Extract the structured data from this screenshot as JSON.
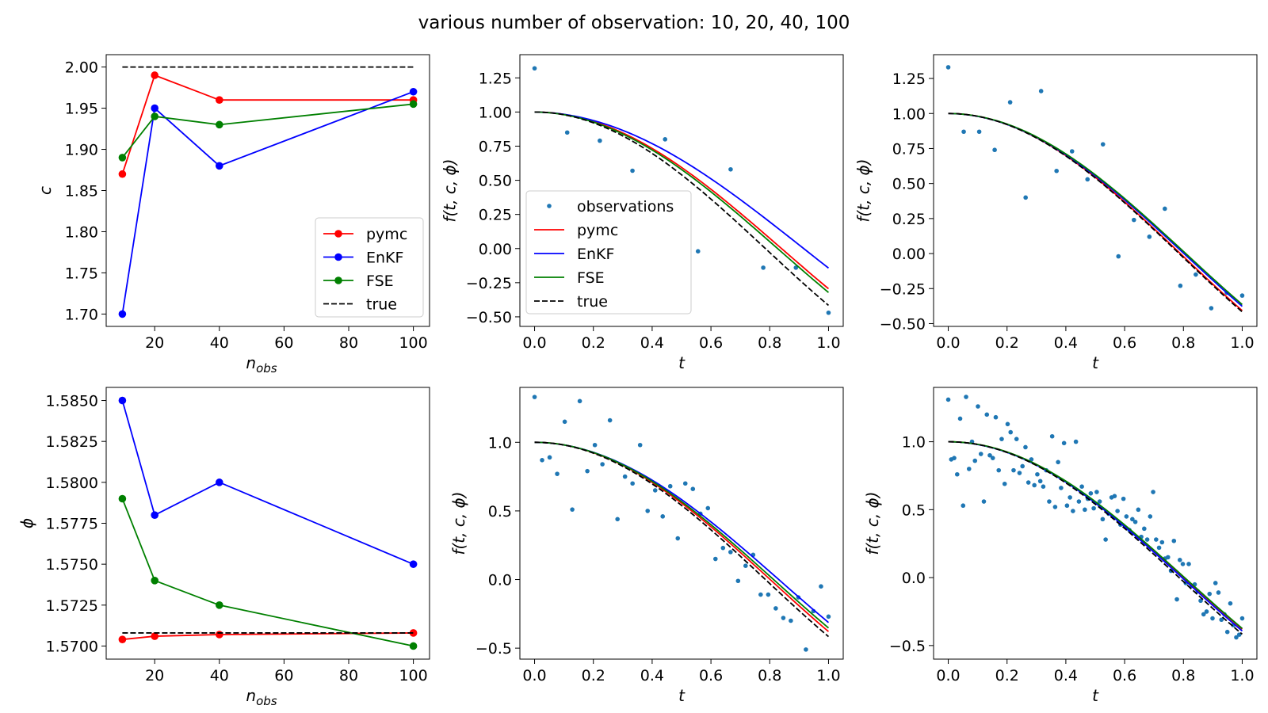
{
  "suptitle": "various number of observation: 10, 20, 40, 100",
  "colors": {
    "pymc": "#ff0000",
    "enkf": "#0000ff",
    "fse": "#008000",
    "true": "#000000",
    "observations": "#1f77b4"
  },
  "chart_data": [
    {
      "id": "c-vs-nobs",
      "type": "line",
      "xlabel": "n_obs",
      "ylabel": "c",
      "xlim": [
        5,
        105
      ],
      "ylim": [
        1.685,
        2.015
      ],
      "xticks": [
        20,
        40,
        60,
        80,
        100
      ],
      "yticks": [
        1.7,
        1.75,
        1.8,
        1.85,
        1.9,
        1.95,
        2.0
      ],
      "ytick_decimals": 2,
      "grid": false,
      "legend": "lower-right",
      "x": [
        10,
        20,
        40,
        100
      ],
      "series": [
        {
          "name": "pymc",
          "color_key": "pymc",
          "values": [
            1.87,
            1.99,
            1.96,
            1.96
          ],
          "markers": true
        },
        {
          "name": "EnKF",
          "color_key": "enkf",
          "values": [
            1.7,
            1.95,
            1.88,
            1.97
          ],
          "markers": true
        },
        {
          "name": "FSE",
          "color_key": "fse",
          "values": [
            1.89,
            1.94,
            1.93,
            1.955
          ],
          "markers": true
        },
        {
          "name": "true",
          "color_key": "true",
          "values": [
            2.0,
            2.0,
            2.0,
            2.0
          ],
          "dashed": true
        }
      ]
    },
    {
      "id": "fit-10",
      "type": "line",
      "xlabel": "t",
      "ylabel": "f(t, c, ϕ)",
      "xlim": [
        -0.05,
        1.05
      ],
      "ylim": [
        -0.57,
        1.42
      ],
      "xticks": [
        0.0,
        0.2,
        0.4,
        0.6,
        0.8,
        1.0
      ],
      "yticks": [
        -0.5,
        -0.25,
        0.0,
        0.25,
        0.5,
        0.75,
        1.0,
        1.25
      ],
      "ytick_decimals": 2,
      "grid": false,
      "legend": "lower-left",
      "legend_observations": "observations",
      "observations": {
        "t": [
          0.0,
          0.111,
          0.222,
          0.333,
          0.444,
          0.556,
          0.667,
          0.778,
          0.889,
          1.0
        ],
        "y": [
          1.32,
          0.85,
          0.79,
          0.57,
          0.8,
          -0.02,
          0.58,
          -0.14,
          -0.14,
          -0.47
        ]
      },
      "curves": [
        {
          "name": "pymc",
          "color_key": "pymc",
          "c": 1.87,
          "phi": 1.5704
        },
        {
          "name": "EnKF",
          "color_key": "enkf",
          "c": 1.7,
          "phi": 1.585
        },
        {
          "name": "FSE",
          "color_key": "fse",
          "c": 1.89,
          "phi": 1.579
        },
        {
          "name": "true",
          "color_key": "true",
          "c": 2.0,
          "phi": 1.5708,
          "dashed": true
        }
      ]
    },
    {
      "id": "fit-20",
      "type": "line",
      "xlabel": "t",
      "ylabel": "f(t, c, ϕ)",
      "xlim": [
        -0.05,
        1.05
      ],
      "ylim": [
        -0.52,
        1.42
      ],
      "xticks": [
        0.0,
        0.2,
        0.4,
        0.6,
        0.8,
        1.0
      ],
      "yticks": [
        -0.5,
        -0.25,
        0.0,
        0.25,
        0.5,
        0.75,
        1.0,
        1.25
      ],
      "ytick_decimals": 2,
      "grid": false,
      "observations": {
        "t": [
          0.0,
          0.0526,
          0.1053,
          0.1579,
          0.2105,
          0.2632,
          0.3158,
          0.3684,
          0.4211,
          0.4737,
          0.5263,
          0.5789,
          0.6316,
          0.6842,
          0.7368,
          0.7895,
          0.8421,
          0.8947,
          0.9474,
          1.0
        ],
        "y": [
          1.33,
          0.87,
          0.87,
          0.74,
          1.08,
          0.4,
          1.16,
          0.59,
          0.73,
          0.53,
          0.78,
          -0.02,
          0.24,
          0.12,
          0.32,
          -0.23,
          -0.15,
          -0.39,
          -0.28,
          -0.3
        ]
      },
      "curves": [
        {
          "name": "pymc",
          "color_key": "pymc",
          "c": 1.99,
          "phi": 1.5706
        },
        {
          "name": "EnKF",
          "color_key": "enkf",
          "c": 1.95,
          "phi": 1.578
        },
        {
          "name": "FSE",
          "color_key": "fse",
          "c": 1.94,
          "phi": 1.574
        },
        {
          "name": "true",
          "color_key": "true",
          "c": 2.0,
          "phi": 1.5708,
          "dashed": true
        }
      ]
    },
    {
      "id": "phi-vs-nobs",
      "type": "line",
      "xlabel": "n_obs",
      "ylabel": "ϕ",
      "xlim": [
        5,
        105
      ],
      "ylim": [
        1.5692,
        1.5858
      ],
      "xticks": [
        20,
        40,
        60,
        80,
        100
      ],
      "yticks": [
        1.57,
        1.5725,
        1.575,
        1.5775,
        1.58,
        1.5825,
        1.585
      ],
      "ytick_decimals": 4,
      "grid": false,
      "x": [
        10,
        20,
        40,
        100
      ],
      "series": [
        {
          "name": "pymc",
          "color_key": "pymc",
          "values": [
            1.5704,
            1.5706,
            1.5707,
            1.5708
          ],
          "markers": true
        },
        {
          "name": "EnKF",
          "color_key": "enkf",
          "values": [
            1.585,
            1.578,
            1.58,
            1.575
          ],
          "markers": true
        },
        {
          "name": "FSE",
          "color_key": "fse",
          "values": [
            1.579,
            1.574,
            1.5725,
            1.57
          ],
          "markers": true
        },
        {
          "name": "true",
          "color_key": "true",
          "values": [
            1.5708,
            1.5708,
            1.5708,
            1.5708
          ],
          "dashed": true
        }
      ]
    },
    {
      "id": "fit-40",
      "type": "line",
      "xlabel": "t",
      "ylabel": "f(t, c, ϕ)",
      "xlim": [
        -0.05,
        1.05
      ],
      "ylim": [
        -0.58,
        1.4
      ],
      "xticks": [
        0.0,
        0.2,
        0.4,
        0.6,
        0.8,
        1.0
      ],
      "yticks": [
        -0.5,
        0.0,
        0.5,
        1.0
      ],
      "ytick_decimals": 1,
      "grid": false,
      "observations": {
        "t": [
          0.0,
          0.0256,
          0.0513,
          0.0769,
          0.1026,
          0.1282,
          0.1538,
          0.1795,
          0.2051,
          0.2308,
          0.2564,
          0.2821,
          0.3077,
          0.3333,
          0.359,
          0.3846,
          0.4103,
          0.4359,
          0.4615,
          0.4872,
          0.5128,
          0.5385,
          0.5641,
          0.5897,
          0.6154,
          0.641,
          0.6667,
          0.6923,
          0.7179,
          0.7436,
          0.7692,
          0.7949,
          0.8205,
          0.8462,
          0.8718,
          0.8974,
          0.9231,
          0.9487,
          0.9744,
          1.0
        ],
        "y": [
          1.33,
          0.87,
          0.89,
          0.77,
          1.15,
          0.51,
          1.3,
          0.79,
          0.98,
          0.84,
          1.16,
          0.44,
          0.75,
          0.7,
          0.98,
          0.5,
          0.65,
          0.46,
          0.68,
          0.3,
          0.7,
          0.66,
          0.48,
          0.52,
          0.15,
          0.23,
          0.2,
          -0.01,
          0.1,
          0.18,
          -0.11,
          -0.11,
          -0.21,
          -0.28,
          -0.3,
          -0.13,
          -0.51,
          -0.23,
          -0.05,
          -0.27
        ]
      },
      "curves": [
        {
          "name": "pymc",
          "color_key": "pymc",
          "c": 1.96,
          "phi": 1.5707
        },
        {
          "name": "EnKF",
          "color_key": "enkf",
          "c": 1.88,
          "phi": 1.58
        },
        {
          "name": "FSE",
          "color_key": "fse",
          "c": 1.93,
          "phi": 1.5725
        },
        {
          "name": "true",
          "color_key": "true",
          "c": 2.0,
          "phi": 1.5708,
          "dashed": true
        }
      ]
    },
    {
      "id": "fit-100",
      "type": "line",
      "xlabel": "t",
      "ylabel": "f(t, c, ϕ)",
      "xlim": [
        -0.05,
        1.05
      ],
      "ylim": [
        -0.6,
        1.4
      ],
      "xticks": [
        0.0,
        0.2,
        0.4,
        0.6,
        0.8,
        1.0
      ],
      "yticks": [
        -0.5,
        0.0,
        0.5,
        1.0
      ],
      "ytick_decimals": 1,
      "grid": false,
      "observations": {
        "t": [
          0.0,
          0.0101,
          0.0202,
          0.0303,
          0.0404,
          0.0505,
          0.0606,
          0.0707,
          0.0808,
          0.0909,
          0.101,
          0.1111,
          0.1212,
          0.1313,
          0.1414,
          0.1515,
          0.1616,
          0.1717,
          0.1818,
          0.1919,
          0.202,
          0.2121,
          0.2222,
          0.2323,
          0.2424,
          0.2525,
          0.2626,
          0.2727,
          0.2828,
          0.2929,
          0.303,
          0.3131,
          0.3232,
          0.3333,
          0.3434,
          0.3535,
          0.3636,
          0.3737,
          0.3838,
          0.3939,
          0.404,
          0.4141,
          0.4242,
          0.4343,
          0.4444,
          0.4545,
          0.4646,
          0.4747,
          0.4848,
          0.4949,
          0.5051,
          0.5152,
          0.5253,
          0.5354,
          0.5455,
          0.5556,
          0.5657,
          0.5758,
          0.5859,
          0.596,
          0.6061,
          0.6162,
          0.6263,
          0.6364,
          0.6465,
          0.6566,
          0.6667,
          0.6768,
          0.6869,
          0.697,
          0.7071,
          0.7172,
          0.7273,
          0.7374,
          0.7475,
          0.7576,
          0.7677,
          0.7778,
          0.7879,
          0.798,
          0.8081,
          0.8182,
          0.8283,
          0.8384,
          0.8485,
          0.8586,
          0.8687,
          0.8788,
          0.8889,
          0.899,
          0.9091,
          0.9192,
          0.9293,
          0.9394,
          0.9495,
          0.9596,
          0.9697,
          0.9798,
          0.9899,
          1.0
        ],
        "y": [
          1.31,
          0.87,
          0.88,
          0.76,
          1.17,
          0.53,
          1.33,
          0.8,
          1.0,
          0.86,
          1.26,
          0.91,
          0.56,
          1.2,
          0.9,
          0.88,
          1.18,
          0.79,
          1.02,
          0.69,
          1.13,
          1.07,
          0.79,
          1.02,
          0.77,
          0.82,
          0.96,
          0.7,
          0.87,
          0.68,
          0.76,
          0.71,
          0.67,
          0.79,
          0.56,
          1.04,
          0.52,
          0.85,
          0.66,
          0.99,
          0.53,
          0.59,
          0.49,
          1.0,
          0.56,
          0.67,
          0.5,
          0.58,
          0.62,
          0.51,
          0.63,
          0.56,
          0.43,
          0.28,
          0.47,
          0.59,
          0.6,
          0.49,
          0.39,
          0.58,
          0.45,
          0.35,
          0.43,
          0.41,
          0.5,
          0.3,
          0.36,
          0.28,
          0.45,
          0.63,
          0.28,
          0.22,
          0.26,
          0.14,
          0.15,
          0.05,
          0.27,
          -0.16,
          0.13,
          0.1,
          -0.04,
          0.1,
          -0.06,
          -0.05,
          -0.1,
          -0.17,
          -0.27,
          -0.25,
          -0.12,
          -0.3,
          -0.04,
          -0.11,
          -0.31,
          -0.27,
          -0.4,
          -0.19,
          -0.35,
          -0.44,
          -0.42,
          -0.3
        ]
      },
      "curves": [
        {
          "name": "pymc",
          "color_key": "pymc",
          "c": 1.96,
          "phi": 1.5708
        },
        {
          "name": "EnKF",
          "color_key": "enkf",
          "c": 1.97,
          "phi": 1.575
        },
        {
          "name": "FSE",
          "color_key": "fse",
          "c": 1.955,
          "phi": 1.57
        },
        {
          "name": "true",
          "color_key": "true",
          "c": 2.0,
          "phi": 1.5708,
          "dashed": true
        }
      ]
    }
  ]
}
